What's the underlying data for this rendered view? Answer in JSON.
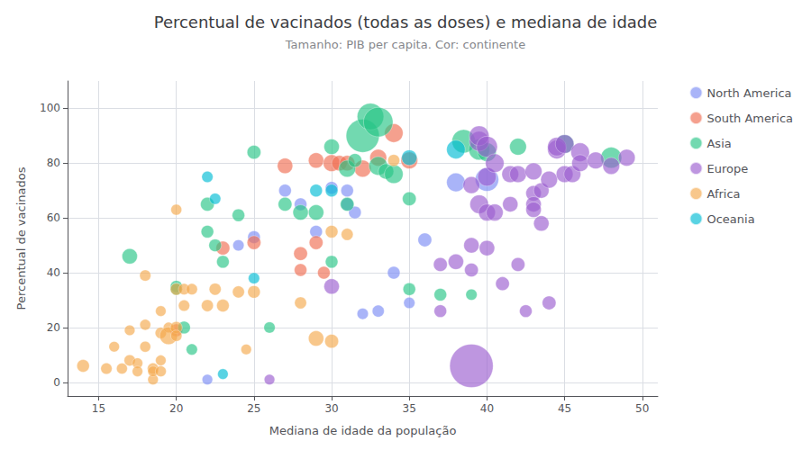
{
  "chart_data": {
    "type": "scatter",
    "title": "Percentual de vacinados (todas as doses) e mediana de idade",
    "subtitle": "Tamanho: PIB per capita. Cor: continente",
    "xlabel": "Mediana de idade da população",
    "ylabel": "Percentual de vacinados",
    "xlim": [
      13,
      51
    ],
    "ylim": [
      -5,
      110
    ],
    "xticks": [
      15,
      20,
      25,
      30,
      35,
      40,
      45,
      50
    ],
    "yticks": [
      0,
      20,
      40,
      60,
      80,
      100
    ],
    "grid": true,
    "legend": "right",
    "series": [
      {
        "name": "North America",
        "color": "#7b8cf5",
        "x": [
          22,
          24,
          25,
          27,
          28,
          29,
          30,
          31,
          31,
          31.5,
          32,
          33,
          34,
          35,
          36,
          38,
          40
        ],
        "values": [
          1,
          50,
          53,
          70,
          65,
          55,
          71,
          70,
          65,
          62,
          25,
          26,
          40,
          29,
          52,
          73,
          74
        ],
        "sizes": [
          70,
          80,
          100,
          100,
          100,
          100,
          100,
          100,
          100,
          100,
          80,
          90,
          100,
          80,
          120,
          220,
          350
        ]
      },
      {
        "name": "South America",
        "color": "#ef6d51",
        "x": [
          20,
          23,
          25,
          27,
          28,
          28,
          29,
          29,
          29.5,
          30,
          30.5,
          31,
          32,
          33,
          34,
          35
        ],
        "values": [
          19,
          49,
          51,
          79,
          47,
          41,
          81,
          51,
          40,
          80,
          80,
          80,
          78,
          82,
          91,
          81
        ],
        "sizes": [
          100,
          120,
          120,
          150,
          120,
          100,
          150,
          120,
          100,
          180,
          150,
          150,
          180,
          180,
          220,
          180
        ]
      },
      {
        "name": "Asia",
        "color": "#26c485",
        "x": [
          17,
          20,
          20,
          20.5,
          21,
          22,
          22,
          22.5,
          23,
          24,
          25,
          26,
          27,
          28,
          29,
          30,
          30,
          31,
          31,
          31.5,
          32,
          32.5,
          33,
          33,
          33.5,
          34,
          35,
          35,
          37,
          38.5,
          39,
          39.5,
          40,
          42,
          45,
          48
        ],
        "values": [
          46,
          35,
          34,
          20,
          12,
          65,
          55,
          50,
          44,
          61,
          84,
          20,
          65,
          62,
          62,
          86,
          44,
          78,
          65,
          81,
          90,
          97,
          95,
          79,
          77,
          76,
          67,
          34,
          32,
          88,
          32,
          85,
          84,
          86,
          87,
          82
        ],
        "sizes": [
          150,
          90,
          90,
          100,
          80,
          120,
          100,
          100,
          100,
          100,
          120,
          80,
          120,
          150,
          150,
          150,
          100,
          180,
          120,
          120,
          700,
          450,
          550,
          220,
          150,
          220,
          120,
          100,
          100,
          350,
          80,
          280,
          220,
          180,
          220,
          280
        ]
      },
      {
        "name": "Europe",
        "color": "#9b5dcf",
        "x": [
          26,
          30,
          37,
          37,
          38,
          39,
          39,
          39,
          39.5,
          39.5,
          39.5,
          40,
          40,
          40,
          40,
          40.5,
          40.5,
          41,
          41.5,
          41.5,
          42,
          42,
          42.5,
          43,
          43,
          43,
          43,
          43.5,
          43.5,
          44,
          44,
          44.5,
          44.5,
          45,
          45,
          45.5,
          46,
          46,
          47,
          48,
          49,
          39
        ],
        "values": [
          1,
          35,
          26,
          43,
          44,
          72,
          50,
          41,
          65,
          88,
          90,
          86,
          75,
          62,
          49,
          80,
          62,
          36,
          76,
          65,
          76,
          43,
          26,
          69,
          65,
          63,
          77,
          58,
          70,
          29,
          74,
          85,
          86,
          76,
          87,
          76,
          84,
          80,
          81,
          79,
          82,
          6
        ],
        "sizes": [
          70,
          150,
          100,
          120,
          150,
          180,
          150,
          120,
          220,
          250,
          250,
          280,
          220,
          180,
          150,
          220,
          180,
          120,
          180,
          150,
          180,
          120,
          100,
          150,
          150,
          150,
          180,
          150,
          150,
          120,
          180,
          220,
          220,
          180,
          220,
          180,
          220,
          180,
          180,
          180,
          180,
          1200
        ]
      },
      {
        "name": "Africa",
        "color": "#f5a94d",
        "x": [
          14,
          15.5,
          16,
          16.5,
          17,
          17,
          17.5,
          17.5,
          18,
          18,
          18,
          18.5,
          18.5,
          18.5,
          19,
          19,
          19,
          19,
          19.5,
          19.5,
          20,
          20,
          20,
          20,
          20.5,
          20.5,
          21,
          22,
          22.5,
          23,
          24,
          24.5,
          25,
          28,
          29,
          30,
          30,
          31,
          34
        ],
        "values": [
          6,
          5,
          13,
          5,
          19,
          8,
          7,
          4,
          39,
          21,
          13,
          5,
          1,
          4,
          26,
          18,
          8,
          4,
          20,
          17,
          63,
          34,
          20,
          17,
          34,
          28,
          34,
          28,
          34,
          28,
          33,
          12,
          33,
          29,
          16,
          15,
          55,
          54,
          81
        ],
        "sizes": [
          100,
          80,
          70,
          75,
          70,
          80,
          70,
          70,
          80,
          75,
          75,
          80,
          70,
          70,
          70,
          80,
          70,
          75,
          70,
          200,
          75,
          90,
          90,
          80,
          80,
          80,
          80,
          90,
          90,
          100,
          90,
          70,
          100,
          90,
          150,
          120,
          100,
          90,
          90
        ]
      },
      {
        "name": "Oceania",
        "color": "#00bcd4",
        "x": [
          22,
          22.5,
          23,
          25,
          29,
          30,
          35,
          38
        ],
        "values": [
          75,
          67,
          3,
          38,
          70,
          70,
          82,
          85
        ],
        "sizes": [
          80,
          80,
          70,
          80,
          100,
          100,
          150,
          220
        ]
      }
    ]
  }
}
